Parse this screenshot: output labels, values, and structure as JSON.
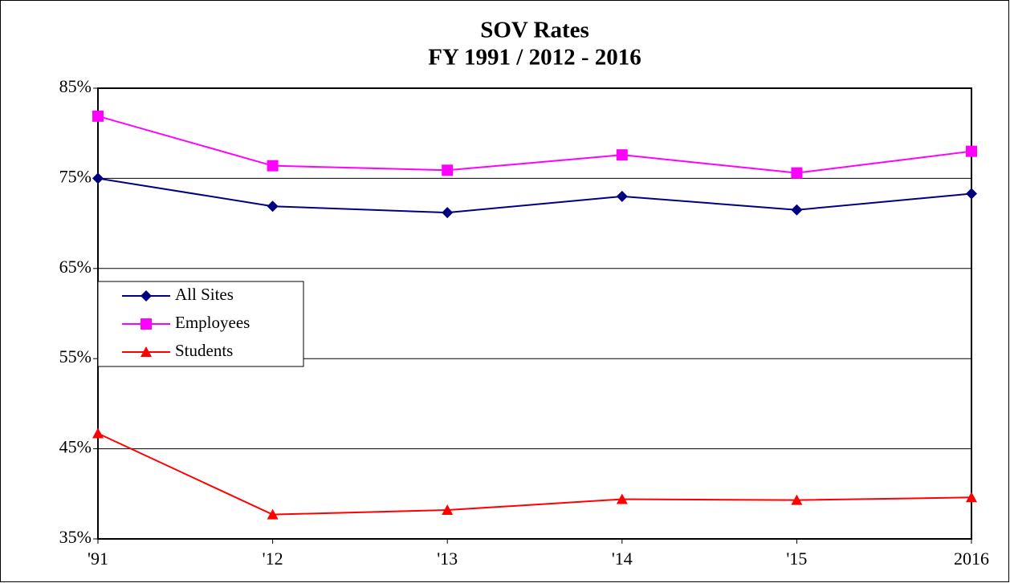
{
  "chart_data": {
    "type": "line",
    "title": "SOV Rates",
    "subtitle": "FY 1991 / 2012 - 2016",
    "categories": [
      "'91",
      "'12",
      "'13",
      "'14",
      "'15",
      "2016"
    ],
    "series": [
      {
        "name": "All Sites",
        "color": "#000080",
        "marker": "diamond",
        "values": [
          75.0,
          71.9,
          71.2,
          73.0,
          71.5,
          73.3
        ]
      },
      {
        "name": "Employees",
        "color": "#ff00ff",
        "marker": "square",
        "values": [
          81.9,
          76.4,
          75.9,
          77.6,
          75.6,
          78.0
        ]
      },
      {
        "name": "Students",
        "color": "#ff0000",
        "marker": "triangle",
        "values": [
          46.7,
          37.7,
          38.2,
          39.4,
          39.3,
          39.6
        ]
      }
    ],
    "ylim": [
      35,
      85
    ],
    "yticks": [
      {
        "value": 35,
        "label": "35%"
      },
      {
        "value": 45,
        "label": "45%"
      },
      {
        "value": 55,
        "label": "55%"
      },
      {
        "value": 65,
        "label": "65%"
      },
      {
        "value": 75,
        "label": "75%"
      },
      {
        "value": 85,
        "label": "85%"
      }
    ],
    "grid": true,
    "legend": "left"
  }
}
